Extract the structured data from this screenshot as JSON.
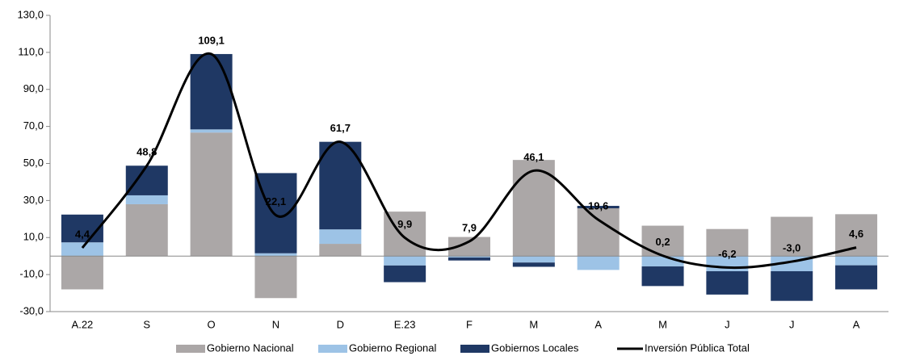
{
  "chart_data": {
    "type": "bar",
    "categories": [
      "A.22",
      "S",
      "O",
      "N",
      "D",
      "E.23",
      "F",
      "M",
      "A",
      "M",
      "J",
      "J",
      "A"
    ],
    "series": [
      {
        "name": "Gobierno Nacional",
        "color": "#aba7a7",
        "values": [
          -18,
          28,
          66.7,
          -22.7,
          6.6,
          24,
          10.3,
          51.9,
          25.8,
          16.4,
          14.6,
          21.2,
          22.6
        ]
      },
      {
        "name": "Gobierno Regional",
        "color": "#9dc3e6",
        "values": [
          7.4,
          4.8,
          1.7,
          1.5,
          7.8,
          -5.1,
          -0.8,
          -3.5,
          -7.5,
          -5.6,
          -8.2,
          -8.2,
          -5
        ]
      },
      {
        "name": "Gobiernos Locales",
        "color": "#1f3864",
        "values": [
          15,
          16,
          40.7,
          43.3,
          47.3,
          -9,
          -1.6,
          -2.3,
          1.3,
          -10.6,
          -12.6,
          -16,
          -13
        ]
      }
    ],
    "line": {
      "name": "Inversión Pública Total",
      "color": "#000000",
      "values": [
        4.4,
        48.8,
        109.1,
        22.1,
        61.7,
        9.9,
        7.9,
        46.1,
        19.6,
        0.2,
        -6.2,
        -3.0,
        4.6
      ],
      "value_labels": [
        "4,4",
        "48,8",
        "109,1",
        "22,1",
        "61,7",
        "9,9",
        "7,9",
        "46,1",
        "19,6",
        "0,2",
        "-6,2",
        "-3,0",
        "4,6"
      ]
    },
    "ylim": [
      -30,
      130
    ],
    "yticks": [
      {
        "value": -30,
        "label": "-30,0"
      },
      {
        "value": -10,
        "label": "-10,0"
      },
      {
        "value": 10,
        "label": "10,0"
      },
      {
        "value": 30,
        "label": "30,0"
      },
      {
        "value": 50,
        "label": "50,0"
      },
      {
        "value": 70,
        "label": "70,0"
      },
      {
        "value": 90,
        "label": "90,0"
      },
      {
        "value": 110,
        "label": "110,0"
      },
      {
        "value": 130,
        "label": "130,0"
      }
    ],
    "grid": false
  }
}
